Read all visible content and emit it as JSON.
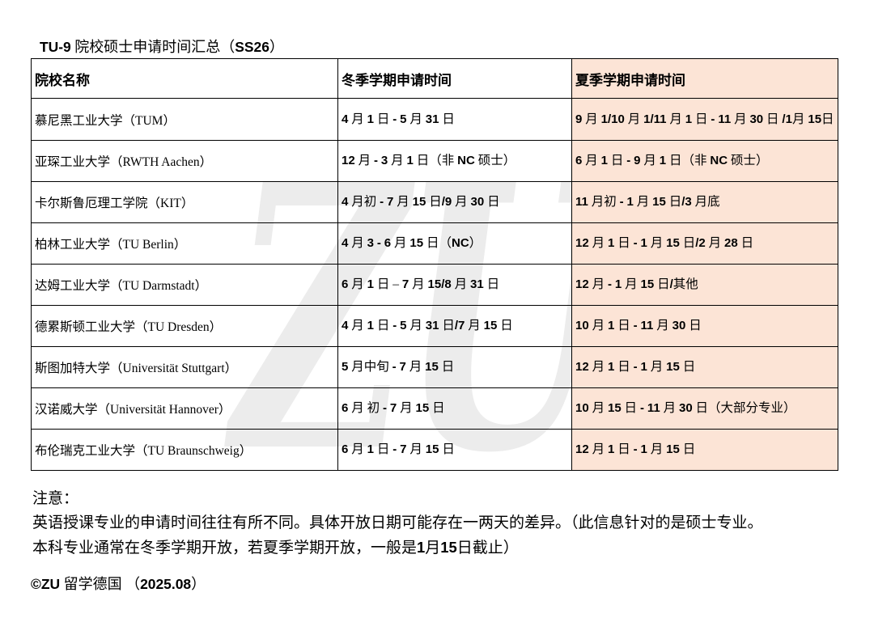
{
  "page": {
    "title": "TU-9 院校硕士申请时间汇总（SS26）",
    "watermark": "ZU",
    "notes": {
      "label": "注意：",
      "line1": "英语授课专业的申请时间往往有所不同。具体开放日期可能存在一两天的差异。（此信息针对的是硕士专业。",
      "line2": "本科专业通常在冬季学期开放，若夏季学期开放，一般是1月15日截止）"
    },
    "copyright": "©ZU 留学德国 （2025.08）"
  },
  "table": {
    "headers": [
      "院校名称",
      "冬季学期申请时间",
      "夏季学期申请时间"
    ],
    "rows": [
      {
        "name": "慕尼黑工业大学（TUM）",
        "winter": "4 月 1 日 - 5 月 31 日",
        "summer": "9 月 1/10 月 1/11 月 1 日 - 11 月 30 日 /1月 15日"
      },
      {
        "name": "亚琛工业大学（RWTH Aachen）",
        "winter": "12 月 - 3 月 1 日（非 NC 硕士）",
        "summer": "6 月 1 日 - 9 月 1 日（非 NC 硕士）"
      },
      {
        "name": "卡尔斯鲁厄理工学院（KIT）",
        "winter": "4 月初 - 7 月 15 日/9 月 30 日",
        "summer": "11 月初 - 1 月 15 日/3 月底"
      },
      {
        "name": "柏林工业大学（TU Berlin）",
        "winter": "4 月 3 - 6 月 15 日（NC）",
        "summer": "12 月 1 日 - 1 月 15 日/2 月 28 日"
      },
      {
        "name": "达姆工业大学（TU Darmstadt）",
        "winter": "6 月 1 日 – 7 月 15/8 月 31 日",
        "summer": "12 月 - 1 月 15 日/其他"
      },
      {
        "name": "德累斯顿工业大学（TU Dresden）",
        "winter": "4 月 1 日 - 5 月 31 日/7 月 15 日",
        "summer": "10 月 1 日 - 11 月 30 日"
      },
      {
        "name": "斯图加特大学（Universität Stuttgart）",
        "winter": "5 月中旬 - 7 月 15 日",
        "summer": "12 月 1 日 - 1 月 15 日"
      },
      {
        "name": "汉诺威大学（Universität Hannover）",
        "winter": "6 月 初 - 7 月 15 日",
        "summer": "10 月 15 日 - 11 月 30 日（大部分专业）"
      },
      {
        "name": "布伦瑞克工业大学（TU Braunschweig）",
        "winter": "6 月 1 日 - 7 月 15 日",
        "summer": "12 月 1 日 - 1 月 15 日"
      }
    ]
  },
  "colors": {
    "summer_bg": "#FCE4D6",
    "border": "#000000",
    "watermark": "#ECECEC"
  }
}
